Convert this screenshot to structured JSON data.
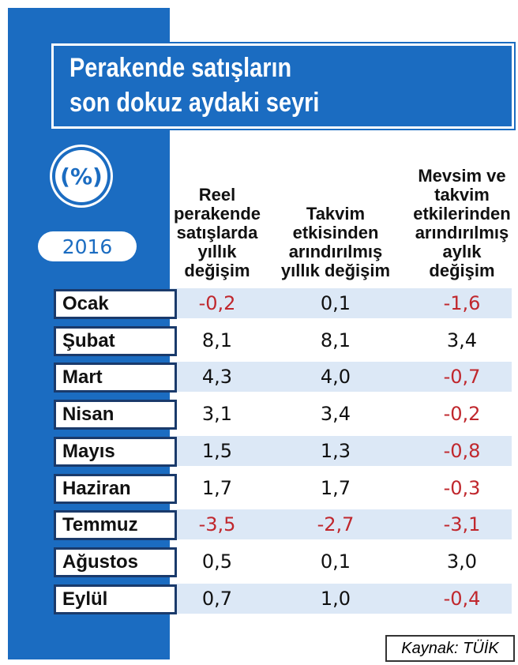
{
  "header": {
    "title": "Perakende satışların\nson dokuz aydaki seyri",
    "unit": "(%)",
    "year": "2016"
  },
  "table": {
    "columns": [
      "Reel\nperakende\nsatışlarda\nyıllık\ndeğişim",
      "Takvim\netkisinden\narındırılmış\nyıllık değişim",
      "Mevsim ve\ntakvim\netkilerinden\narındırılmış\naylık\ndeğişim"
    ],
    "rows": [
      [
        "Ocak",
        "-0,2",
        "0,1",
        "-1,6"
      ],
      [
        "Şubat",
        "8,1",
        "8,1",
        "3,4"
      ],
      [
        "Mart",
        "4,3",
        "4,0",
        "-0,7"
      ],
      [
        "Nisan",
        "3,1",
        "3,4",
        "-0,2"
      ],
      [
        "Mayıs",
        "1,5",
        "1,3",
        "-0,8"
      ],
      [
        "Haziran",
        "1,7",
        "1,7",
        "-0,3"
      ],
      [
        "Temmuz",
        "-3,5",
        "-2,7",
        "-3,1"
      ],
      [
        "Ağustos",
        "0,5",
        "0,1",
        "3,0"
      ],
      [
        "Eylül",
        "0,7",
        "1,0",
        "-0,4"
      ]
    ]
  },
  "source": "Kaynak: TÜİK"
}
